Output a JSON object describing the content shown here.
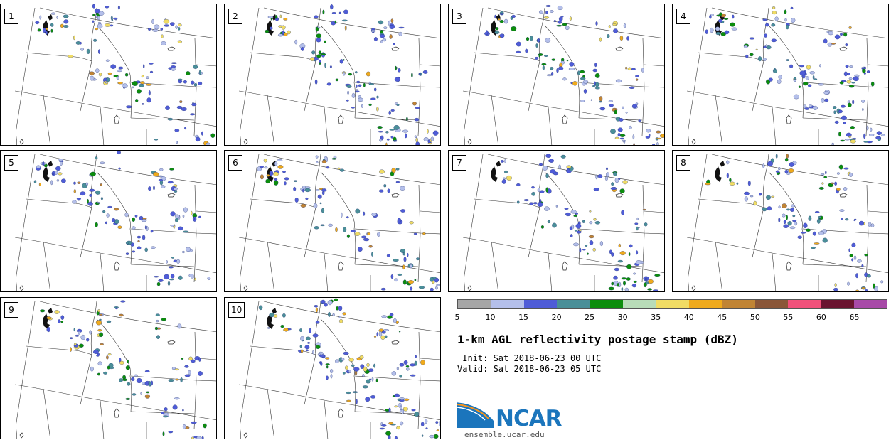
{
  "panels": [
    {
      "number": "1"
    },
    {
      "number": "2"
    },
    {
      "number": "3"
    },
    {
      "number": "4"
    },
    {
      "number": "5"
    },
    {
      "number": "6"
    },
    {
      "number": "7"
    },
    {
      "number": "8"
    },
    {
      "number": "9"
    },
    {
      "number": "10"
    }
  ],
  "colorbar": {
    "ticks": [
      "5",
      "10",
      "15",
      "20",
      "25",
      "30",
      "35",
      "40",
      "45",
      "50",
      "55",
      "60",
      "65"
    ],
    "colors": [
      "#a6a6a6",
      "#b4bfea",
      "#4f5cd7",
      "#4a8f98",
      "#0c8d0c",
      "#b8dcb8",
      "#f0dc64",
      "#efaa1c",
      "#c08434",
      "#8a5638",
      "#f0507a",
      "#6a1430",
      "#a84aa8"
    ]
  },
  "title": "1-km AGL reflectivity postage stamp (dBZ)",
  "init": " Init: Sat 2018-06-23 00 UTC",
  "valid": "Valid: Sat 2018-06-23 05 UTC",
  "logo": {
    "name": "NCAR",
    "url": "ensemble.ucar.edu"
  }
}
